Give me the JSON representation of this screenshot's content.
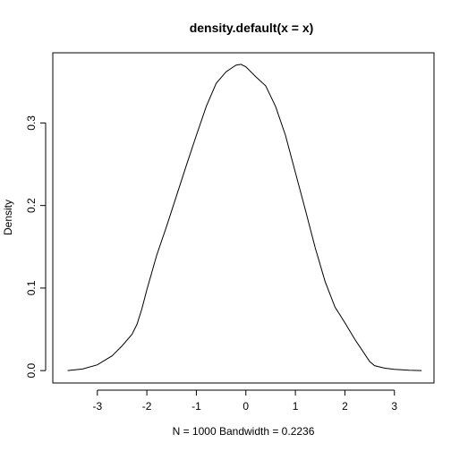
{
  "chart_data": {
    "type": "line",
    "title": "density.default(x = x)",
    "xlabel": "N = 1000   Bandwidth = 0.2236",
    "ylabel": "Density",
    "xlim": [
      -3.9,
      3.8
    ],
    "ylim": [
      -0.015,
      0.385
    ],
    "x_ticks": [
      -3,
      -2,
      -1,
      0,
      1,
      2,
      3
    ],
    "x_tick_labels": [
      "-3",
      "-2",
      "-1",
      "0",
      "1",
      "2",
      "3"
    ],
    "y_ticks": [
      0.0,
      0.1,
      0.2,
      0.3
    ],
    "y_tick_labels": [
      "0.0",
      "0.1",
      "0.2",
      "0.3"
    ],
    "grid": false,
    "legend": "none",
    "color": "#000000",
    "series": [
      {
        "x": [
          -3.6,
          -3.3,
          -3.0,
          -2.7,
          -2.5,
          -2.3,
          -2.2,
          -2.1,
          -2.0,
          -1.8,
          -1.6,
          -1.4,
          -1.2,
          -1.0,
          -0.8,
          -0.6,
          -0.4,
          -0.2,
          -0.1,
          0.0,
          0.2,
          0.4,
          0.6,
          0.8,
          1.0,
          1.2,
          1.4,
          1.6,
          1.8,
          2.0,
          2.2,
          2.4,
          2.5,
          2.6,
          2.8,
          3.0,
          3.3,
          3.55
        ],
        "y": [
          0.0,
          0.002,
          0.007,
          0.018,
          0.03,
          0.044,
          0.056,
          0.075,
          0.098,
          0.14,
          0.175,
          0.212,
          0.249,
          0.285,
          0.32,
          0.348,
          0.362,
          0.37,
          0.371,
          0.368,
          0.356,
          0.345,
          0.32,
          0.285,
          0.24,
          0.195,
          0.149,
          0.108,
          0.077,
          0.058,
          0.038,
          0.02,
          0.011,
          0.006,
          0.003,
          0.0015,
          0.0005,
          0.0
        ]
      }
    ]
  }
}
